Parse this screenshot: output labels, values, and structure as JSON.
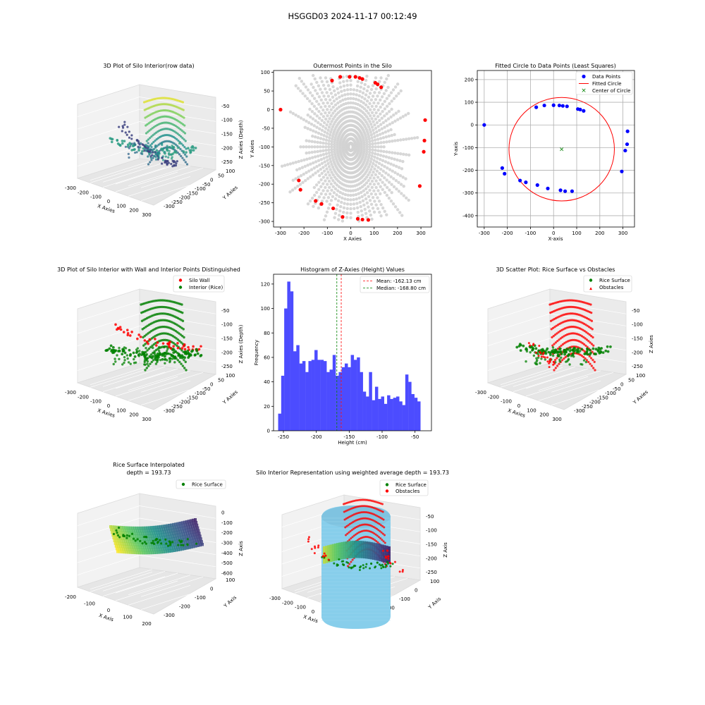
{
  "figure": {
    "suptitle": "HSGGD03 2024-11-17 00:12:49"
  },
  "panels": {
    "p1": {
      "title": "3D Plot of Silo Interior(row data)",
      "xlabel": "X Axies",
      "ylabel": "Y Axies",
      "zlabel": "Z Axies (Depth)",
      "xticks": [
        "-300",
        "-200",
        "-100",
        "0",
        "100",
        "200",
        "300"
      ],
      "yticks": [
        "100",
        "50",
        "0",
        "-50",
        "-100",
        "-150",
        "-200",
        "-250",
        "-300"
      ],
      "zticks": [
        "-50",
        "-100",
        "-150",
        "-200",
        "-250"
      ]
    },
    "p4": {
      "title": "3D Plot of Silo Interior with Wall and Interior Points Distinguished",
      "xlabel": "X Axies",
      "ylabel": "Y Axies",
      "zlabel": "Z Axies (Depth)",
      "legend": [
        "Silo Wall",
        "Interior (Rice)"
      ],
      "xticks": [
        "-300",
        "-200",
        "-100",
        "0",
        "100",
        "200",
        "300"
      ],
      "yticks": [
        "100",
        "50",
        "0",
        "-50",
        "-100",
        "-150",
        "-200",
        "-250",
        "-300"
      ],
      "zticks": [
        "-50",
        "-100",
        "-150",
        "-200",
        "-250"
      ]
    },
    "p6": {
      "title": "3D Scatter Plot: Rice Surface vs Obstacles",
      "xlabel": "X Axies",
      "ylabel": "Y Axies",
      "zlabel": "Z Axies",
      "legend": [
        "Rice Surface",
        "Obstacles"
      ],
      "xticks": [
        "-300",
        "-200",
        "-100",
        "0",
        "100",
        "200",
        "300"
      ],
      "yticks": [
        "100",
        "50",
        "0",
        "-50",
        "-100",
        "-150",
        "-200",
        "-250",
        "-300"
      ],
      "zticks": [
        "-50",
        "-100",
        "-150",
        "-200",
        "-250"
      ]
    },
    "p7": {
      "title": "Rice Surface Interpolated",
      "title2": "depth = 193.73",
      "xlabel": "X Axis",
      "ylabel": "Y Axis",
      "zlabel": "Z Axis",
      "legend": [
        "Rice Surface"
      ],
      "xticks": [
        "-200",
        "-100",
        "0",
        "100",
        "200"
      ],
      "yticks": [
        "100",
        "0",
        "-100",
        "-200",
        "-300"
      ],
      "zticks": [
        "0",
        "-100",
        "-200",
        "-300",
        "-400",
        "-500",
        "-600"
      ]
    },
    "p8": {
      "title": "Silo Interior Representation using weighted average depth = 193.73",
      "xlabel": "X Axis",
      "ylabel": "Y Axis",
      "zlabel": "Z Axis",
      "legend": [
        "Rice Surface",
        "Obstacles"
      ],
      "xticks": [
        "-300",
        "-200",
        "-100",
        "0",
        "100",
        "200",
        "300"
      ],
      "yticks": [
        "100",
        "0",
        "-100",
        "-200",
        "-300"
      ],
      "zticks": [
        "-50",
        "-100",
        "-150",
        "-200",
        "-250"
      ]
    }
  },
  "colors": {
    "red": "#ff0000",
    "green": "#008000",
    "blue": "#0000ff",
    "gray": "#d3d3d3",
    "skyblue": "#87ceeb",
    "hist": "#4c4cff"
  },
  "chart_data": [
    {
      "type": "scatter",
      "title": "Outermost Points in the Silo",
      "xlabel": "X Axies",
      "ylabel": "Y Axies",
      "xlim": [
        -330,
        345
      ],
      "ylim": [
        -315,
        105
      ],
      "xticks": [
        -300,
        -200,
        -100,
        0,
        100,
        200,
        300
      ],
      "yticks": [
        100,
        50,
        0,
        -50,
        -100,
        -150,
        -200,
        -250,
        -300
      ],
      "series": [
        {
          "color": "#d3d3d3",
          "description": "all points (radial rays from center)"
        },
        {
          "color": "#ff0000",
          "points": [
            [
              -300,
              0
            ],
            [
              -80,
              78
            ],
            [
              -45,
              88
            ],
            [
              -5,
              88
            ],
            [
              20,
              88
            ],
            [
              38,
              85
            ],
            [
              50,
              82
            ],
            [
              105,
              72
            ],
            [
              115,
              68
            ],
            [
              130,
              60
            ],
            [
              318,
              -28
            ],
            [
              315,
              -83
            ],
            [
              312,
              -113
            ],
            [
              -222,
              -190
            ],
            [
              -215,
              -215
            ],
            [
              -150,
              -245
            ],
            [
              -125,
              -253
            ],
            [
              -75,
              -265
            ],
            [
              -35,
              -288
            ],
            [
              30,
              -293
            ],
            [
              50,
              -295
            ],
            [
              75,
              -296
            ],
            [
              295,
              -205
            ]
          ]
        }
      ]
    },
    {
      "type": "scatter",
      "title": "Fitted Circle to Data Points (Least Squares)",
      "xlabel": "X-axis",
      "ylabel": "Y-axis",
      "xlim": [
        -330,
        350
      ],
      "ylim": [
        -450,
        240
      ],
      "xticks": [
        -300,
        -200,
        -100,
        0,
        100,
        200,
        300
      ],
      "yticks": [
        200,
        100,
        0,
        -100,
        -200,
        -300,
        -400
      ],
      "legend": [
        "Data Points",
        "Fitted Circle",
        "Center of Circle"
      ],
      "series": [
        {
          "name": "Data Points",
          "color": "#0000ff",
          "points": [
            [
              -300,
              0
            ],
            [
              -75,
              78
            ],
            [
              -40,
              86
            ],
            [
              0,
              87
            ],
            [
              25,
              86
            ],
            [
              40,
              84
            ],
            [
              58,
              82
            ],
            [
              105,
              70
            ],
            [
              115,
              68
            ],
            [
              130,
              62
            ],
            [
              320,
              -28
            ],
            [
              318,
              -85
            ],
            [
              310,
              -113
            ],
            [
              -222,
              -190
            ],
            [
              -212,
              -215
            ],
            [
              -145,
              -245
            ],
            [
              -120,
              -253
            ],
            [
              -70,
              -265
            ],
            [
              -25,
              -280
            ],
            [
              30,
              -288
            ],
            [
              50,
              -292
            ],
            [
              80,
              -292
            ],
            [
              295,
              -205
            ]
          ]
        },
        {
          "name": "Fitted Circle",
          "color": "#ff0000",
          "center": [
            35,
            -107
          ],
          "radius": 228
        },
        {
          "name": "Center of Circle",
          "color": "#008000",
          "points": [
            [
              35,
              -107
            ]
          ]
        }
      ]
    },
    {
      "type": "bar",
      "title": "Histogram of Z-Axies (Height) Values",
      "xlabel": "Height (cm)",
      "ylabel": "Frequency",
      "xlim": [
        -265,
        -25
      ],
      "ylim": [
        0,
        128
      ],
      "xticks": [
        -250,
        -200,
        -150,
        -100,
        -50
      ],
      "yticks": [
        0,
        20,
        40,
        60,
        80,
        100,
        120
      ],
      "bin_start": -258.0,
      "bin_width": 4.6,
      "values": [
        14,
        45,
        100,
        122,
        114,
        65,
        70,
        55,
        57,
        48,
        57,
        58,
        66,
        58,
        58,
        57,
        48,
        50,
        62,
        45,
        48,
        52,
        55,
        52,
        62,
        58,
        60,
        48,
        32,
        28,
        48,
        25,
        36,
        26,
        28,
        22,
        29,
        26,
        27,
        28,
        24,
        21,
        46,
        40,
        30,
        27,
        24
      ],
      "lines": [
        {
          "label": "Mean: -162.13 cm",
          "x": -162.13,
          "color": "#ff0000"
        },
        {
          "label": "Median: -168.80 cm",
          "x": -168.8,
          "color": "#008000"
        }
      ]
    }
  ]
}
